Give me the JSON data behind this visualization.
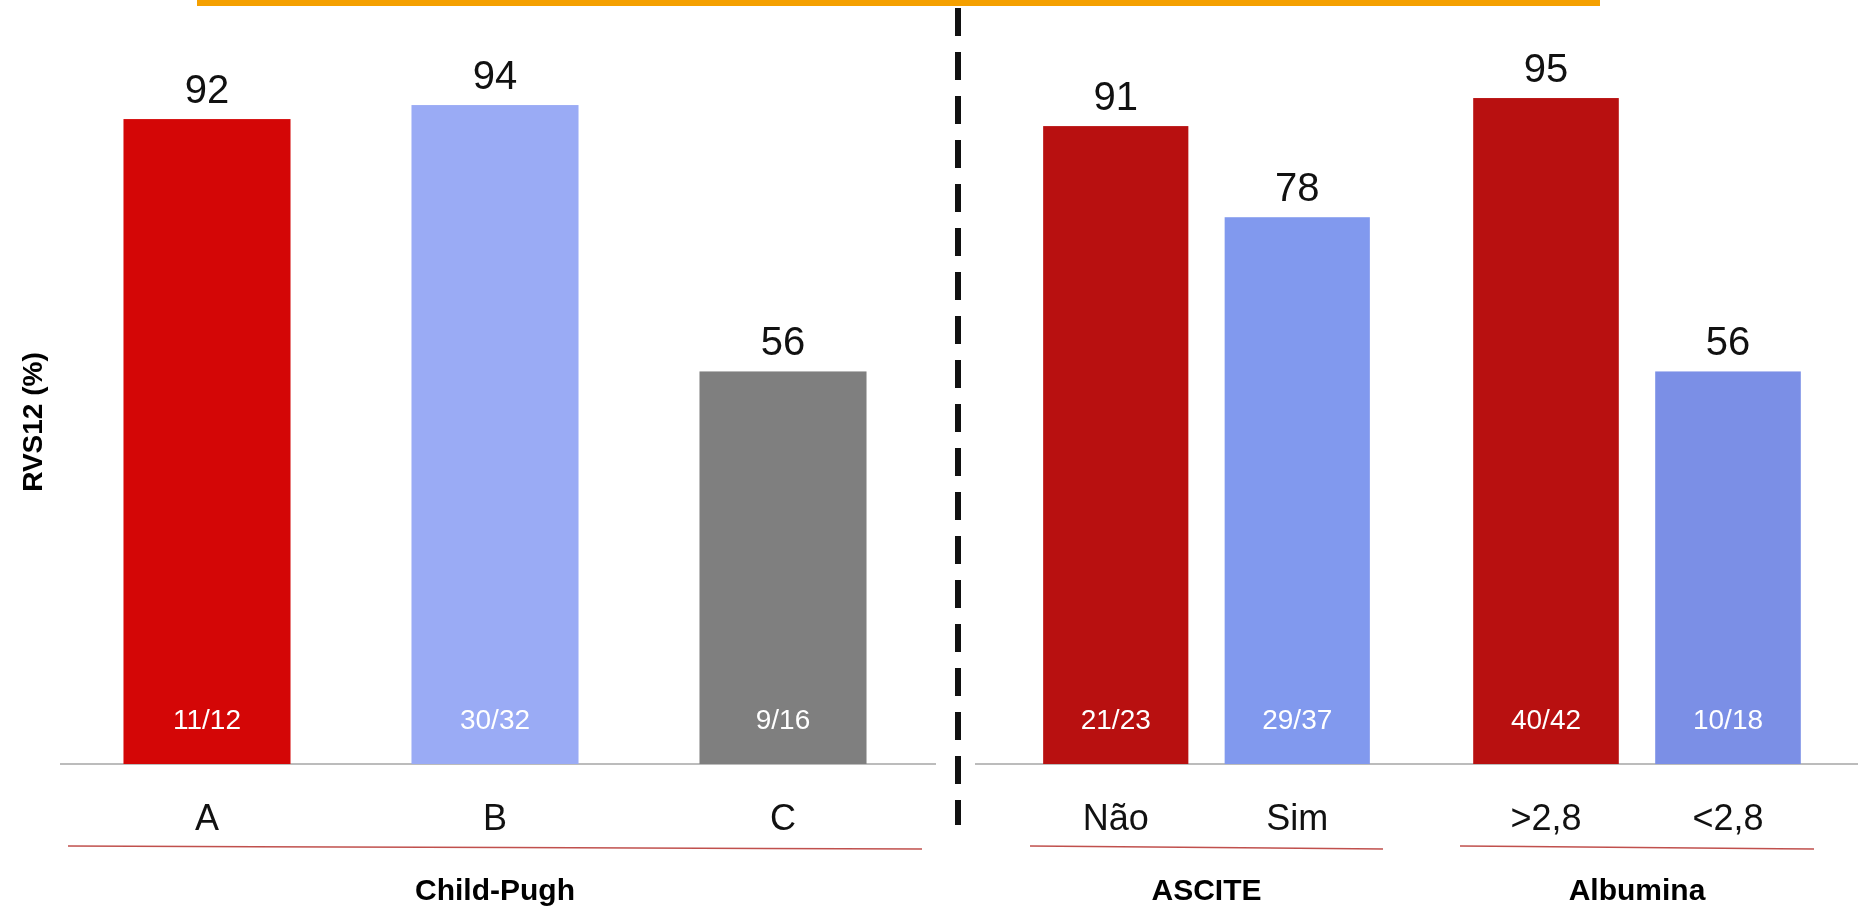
{
  "chart_data": [
    {
      "type": "bar",
      "ylabel": "RVS12 (%)",
      "xlabel": "Child-Pugh",
      "categories": [
        "A",
        "B",
        "C"
      ],
      "values": [
        92,
        94,
        56
      ],
      "colors": [
        "#d40606",
        "#9aabf5",
        "#7f7f7f"
      ],
      "data_labels": true,
      "tick_labels": "x",
      "annotations": [
        "11/12",
        "30/32",
        "9/16"
      ]
    },
    {
      "type": "bar",
      "xlabel": "ASCITE",
      "categories": [
        "Não",
        "Sim"
      ],
      "values": [
        91,
        78
      ],
      "colors": [
        "#b81010",
        "#8199ee"
      ],
      "data_labels": true,
      "tick_labels": "x",
      "annotations": [
        "21/23",
        "29/37"
      ]
    },
    {
      "type": "bar",
      "xlabel": "Albumina",
      "categories": [
        ">2,8",
        "<2,8"
      ],
      "values": [
        95,
        56
      ],
      "colors": [
        "#b81010",
        "#7b8fe6"
      ],
      "data_labels": true,
      "tick_labels": "x",
      "annotations": [
        "40/42",
        "10/18"
      ]
    }
  ]
}
